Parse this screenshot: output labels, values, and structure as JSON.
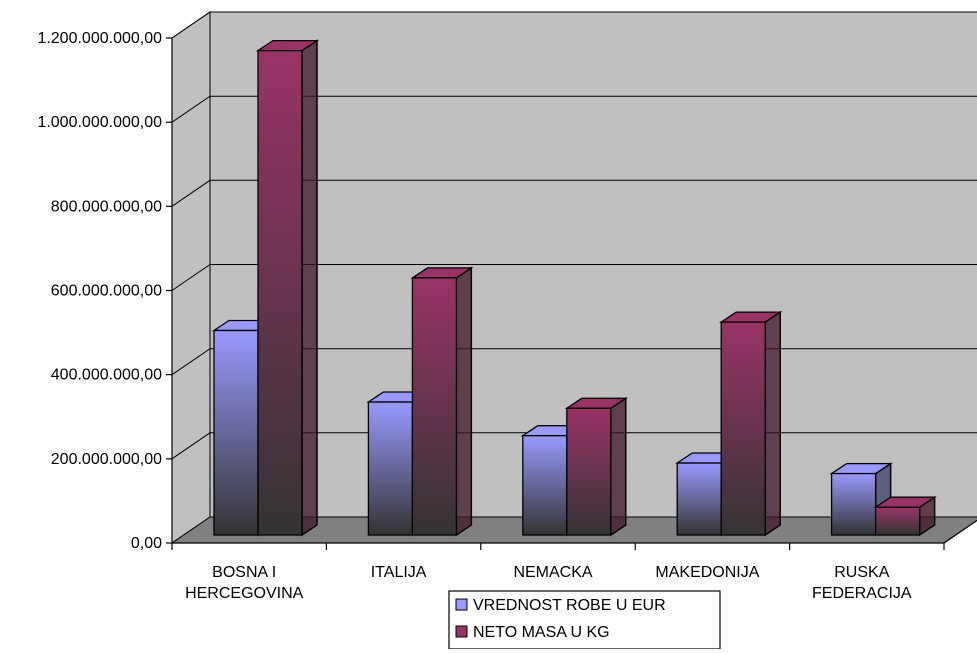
{
  "chart_data": {
    "type": "bar",
    "categories": [
      [
        "BOSNA I",
        "HERCEGOVINA"
      ],
      [
        "ITALIJA"
      ],
      [
        "NEMACKA"
      ],
      [
        "MAKEDONIJA"
      ],
      [
        "RUSKA",
        "FEDERACIJA"
      ]
    ],
    "series": [
      {
        "name": "VREDNOST ROBE U EUR",
        "values": [
          505000000,
          335000000,
          255000000,
          190000000,
          165000000
        ]
      },
      {
        "name": "NETO MASA U KG",
        "values": [
          1170000000,
          630000000,
          320000000,
          525000000,
          85000000
        ]
      }
    ],
    "yticks": [
      "0,00",
      "200.000.000,00",
      "400.000.000,00",
      "600.000.000,00",
      "800.000.000,00",
      "1.000.000.000,00",
      "1.200.000.000,00"
    ],
    "ylim": [
      0,
      1200000000
    ],
    "title": "",
    "xlabel": "",
    "ylabel": "",
    "grid": true,
    "legend_position": "bottom-center",
    "colors": {
      "series_top": [
        "#9999ff",
        "#993366"
      ],
      "series_bottom": [
        "#333333",
        "#333333"
      ],
      "wall": "#c0c0c0",
      "floor": "#808080"
    }
  }
}
